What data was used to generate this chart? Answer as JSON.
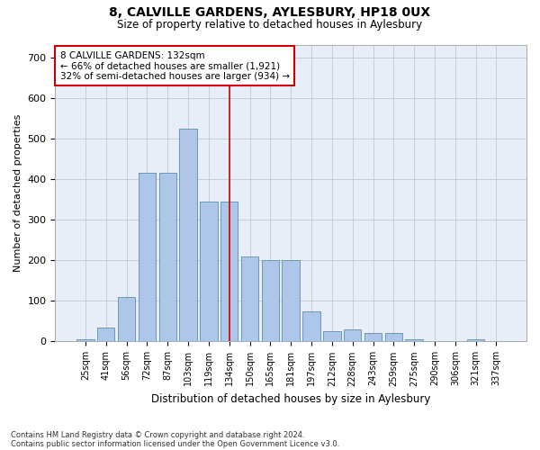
{
  "title1": "8, CALVILLE GARDENS, AYLESBURY, HP18 0UX",
  "title2": "Size of property relative to detached houses in Aylesbury",
  "xlabel": "Distribution of detached houses by size in Aylesbury",
  "ylabel": "Number of detached properties",
  "bar_labels": [
    "25sqm",
    "41sqm",
    "56sqm",
    "72sqm",
    "87sqm",
    "103sqm",
    "119sqm",
    "134sqm",
    "150sqm",
    "165sqm",
    "181sqm",
    "197sqm",
    "212sqm",
    "228sqm",
    "243sqm",
    "259sqm",
    "275sqm",
    "290sqm",
    "306sqm",
    "321sqm",
    "337sqm"
  ],
  "bar_values": [
    5,
    35,
    110,
    415,
    415,
    525,
    345,
    345,
    210,
    200,
    200,
    75,
    25,
    30,
    20,
    20,
    5,
    2,
    2,
    5,
    2
  ],
  "bar_color": "#aec6e8",
  "bar_edge_color": "#5b8db8",
  "vline_x": 7,
  "vline_color": "#cc0000",
  "annotation_text": "8 CALVILLE GARDENS: 132sqm\n← 66% of detached houses are smaller (1,921)\n32% of semi-detached houses are larger (934) →",
  "annotation_box_color": "#ffffff",
  "annotation_box_edge": "#cc0000",
  "ylim": [
    0,
    730
  ],
  "yticks": [
    0,
    100,
    200,
    300,
    400,
    500,
    600,
    700
  ],
  "bg_color": "#e8eef8",
  "footnote1": "Contains HM Land Registry data © Crown copyright and database right 2024.",
  "footnote2": "Contains public sector information licensed under the Open Government Licence v3.0."
}
